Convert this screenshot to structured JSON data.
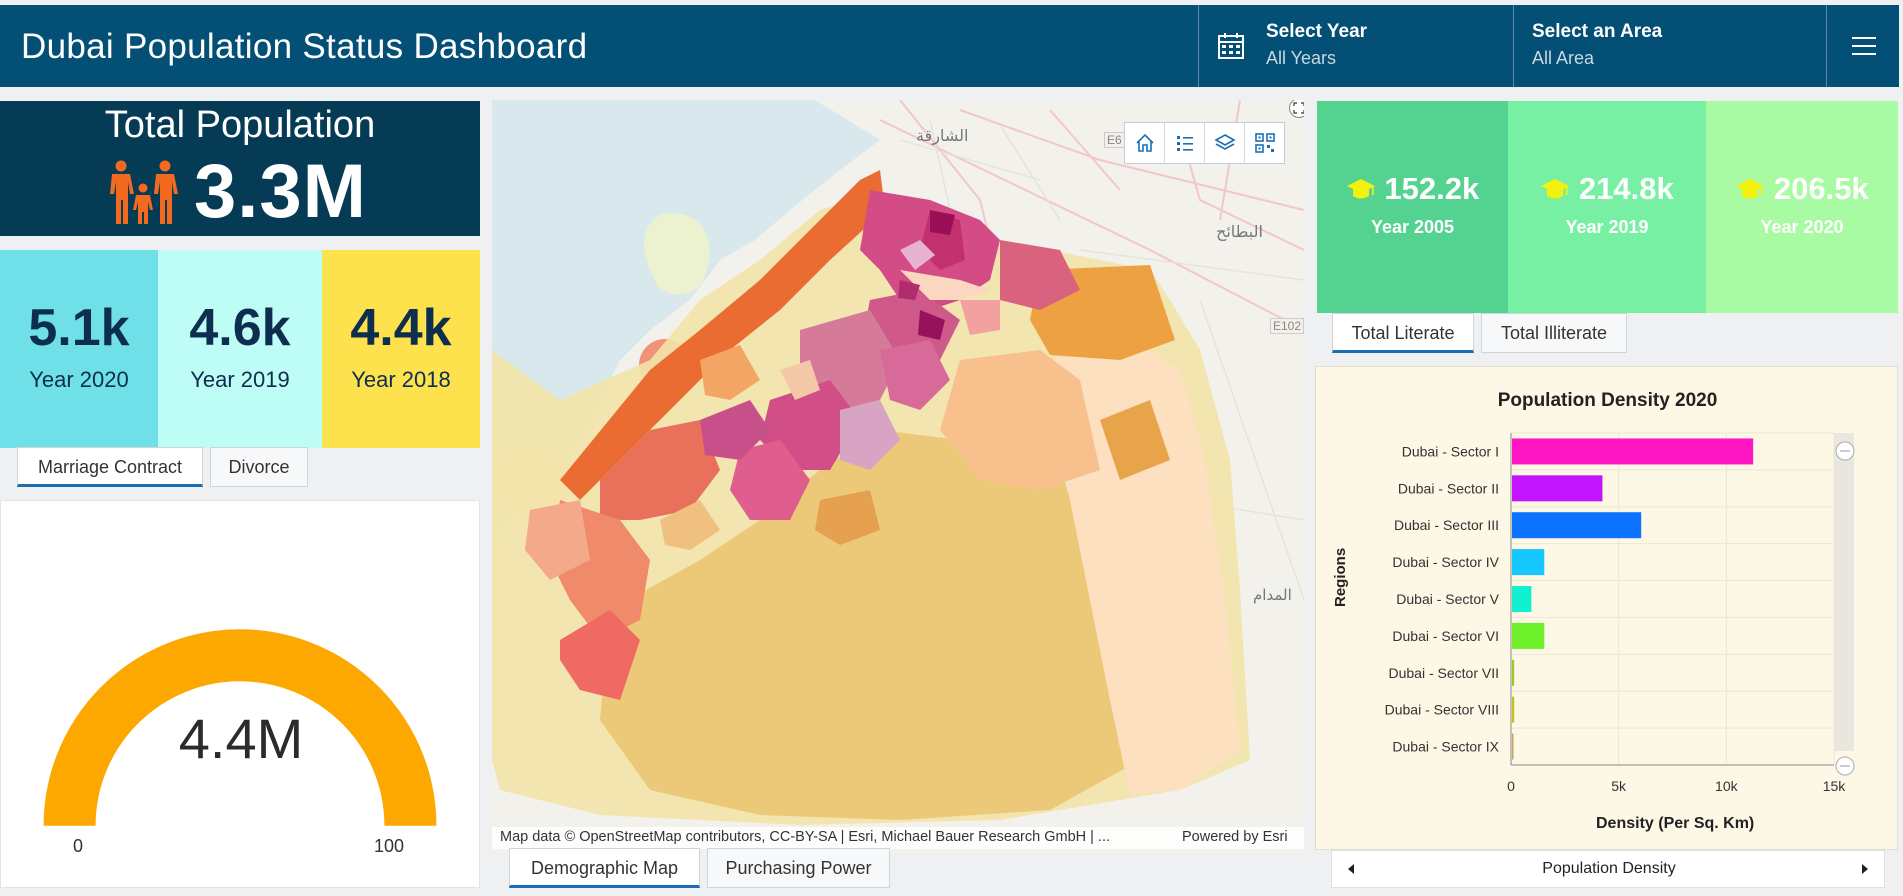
{
  "header": {
    "title": "Dubai Population Status Dashboard",
    "year_label": "Select Year",
    "year_value": "All Years",
    "area_label": "Select an Area",
    "area_value": "All Area"
  },
  "total_population": {
    "title": "Total Population",
    "value": "3.3M"
  },
  "year_stats": [
    {
      "value": "5.1k",
      "year": "Year 2020",
      "color": "#6fe0e8"
    },
    {
      "value": "4.6k",
      "year": "Year 2019",
      "color": "#befcf6"
    },
    {
      "value": "4.4k",
      "year": "Year 2018",
      "color": "#fde24d"
    }
  ],
  "left_tabs": [
    "Marriage Contract",
    "Divorce"
  ],
  "gauge": {
    "value_label": "4.4M",
    "min": "0",
    "max": "100",
    "fraction": 1.0,
    "color": "#fca800"
  },
  "map": {
    "attribution": "Map data © OpenStreetMap contributors, CC-BY-SA | Esri, Michael Bauer Research GmbH | ...",
    "powered": "Powered by Esri",
    "labels": {
      "sharjah": "الشارقة",
      "butaina": "البطائح",
      "road": "E102",
      "road2": "E6",
      "madam": "المدام"
    },
    "tools": [
      "home-icon",
      "legend-icon",
      "layers-icon",
      "qr-icon"
    ]
  },
  "center_tabs": [
    "Demographic Map",
    "Purchasing Power"
  ],
  "literacy": [
    {
      "value": "152.2k",
      "year": "Year 2005",
      "color": "#54d290"
    },
    {
      "value": "214.8k",
      "year": "Year 2019",
      "color": "#77f0a4"
    },
    {
      "value": "206.5k",
      "year": "Year 2020",
      "color": "#a8fba2"
    }
  ],
  "right_tabs": [
    "Total Literate",
    "Total Illiterate"
  ],
  "chart_data": {
    "type": "bar",
    "orientation": "horizontal",
    "title": "Population Density 2020",
    "xlabel": "Density (Per Sq. Km)",
    "ylabel": "Regions",
    "xlim": [
      0,
      15000
    ],
    "x_ticks": [
      "0",
      "5k",
      "10k",
      "15k"
    ],
    "categories": [
      "Dubai - Sector I",
      "Dubai - Sector II",
      "Dubai - Sector III",
      "Dubai - Sector IV",
      "Dubai - Sector V",
      "Dubai - Sector VI",
      "Dubai - Sector VII",
      "Dubai - Sector VIII",
      "Dubai - Sector IX"
    ],
    "values": [
      11200,
      4200,
      6000,
      1500,
      900,
      1500,
      100,
      100,
      60
    ],
    "colors": [
      "#ff17c4",
      "#c315fd",
      "#0c73ff",
      "#16c8ff",
      "#11f0d0",
      "#6ef12b",
      "#8fd21a",
      "#c6c21a",
      "#c9a65a"
    ]
  },
  "pager": {
    "label": "Population Density"
  }
}
